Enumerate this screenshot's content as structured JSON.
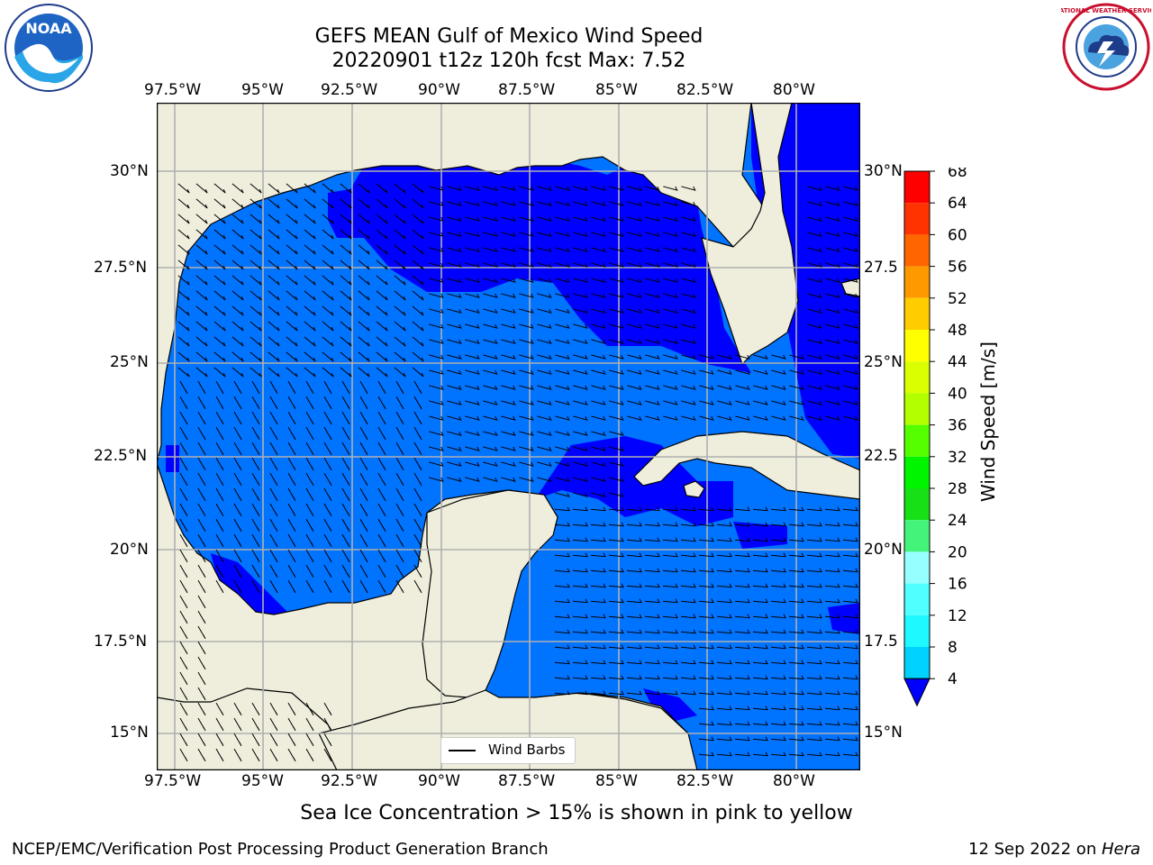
{
  "title": {
    "line1": "GEFS MEAN Gulf of Mexico Wind Speed",
    "line2": "20220901 t12z 120h fcst   Max: 7.52"
  },
  "lon_labels": [
    "97.5°W",
    "95°W",
    "92.5°W",
    "90°W",
    "87.5°W",
    "85°W",
    "82.5°W",
    "80°W"
  ],
  "lat_labels_left": [
    "30°N",
    "27.5°N",
    "25°N",
    "22.5°N",
    "20°N",
    "17.5°N",
    "15°N"
  ],
  "lat_labels_right": [
    "30°N",
    "27.5",
    "25°N",
    "22.5",
    "20°N",
    "17.5",
    "15°N"
  ],
  "legend": {
    "label": "Wind Barbs"
  },
  "colorbar": {
    "label": "Wind Speed [m/s]",
    "ticks": [
      "4",
      "8",
      "12",
      "16",
      "20",
      "24",
      "28",
      "32",
      "36",
      "40",
      "44",
      "48",
      "52",
      "56",
      "60",
      "64",
      "68"
    ],
    "colors": [
      "#0073ff",
      "#00d2ff",
      "#1ef8ff",
      "#50ffff",
      "#96ffff",
      "#44f47a",
      "#17e017",
      "#00f500",
      "#55ff00",
      "#b3ff00",
      "#d9ff00",
      "#ffff00",
      "#ffcc00",
      "#ff9900",
      "#ff6600",
      "#ff3300",
      "#ff0000"
    ],
    "extend_color": "#0000ff"
  },
  "ice_note": "Sea Ice Concentration > 15% is shown in pink to yellow",
  "footer": {
    "left": "NCEP/EMC/Verification Post Processing Product Generation Branch",
    "date": "12 Sep 2022 on ",
    "host": "Hera"
  },
  "logos": {
    "noaa": "NOAA",
    "nws": "NATIONAL WEATHER SERVICE"
  },
  "map_colors": {
    "land": "#efeedd",
    "band_low": "#0000ff",
    "band_mid": "#0073ff",
    "grid": "#b0b0b0"
  }
}
